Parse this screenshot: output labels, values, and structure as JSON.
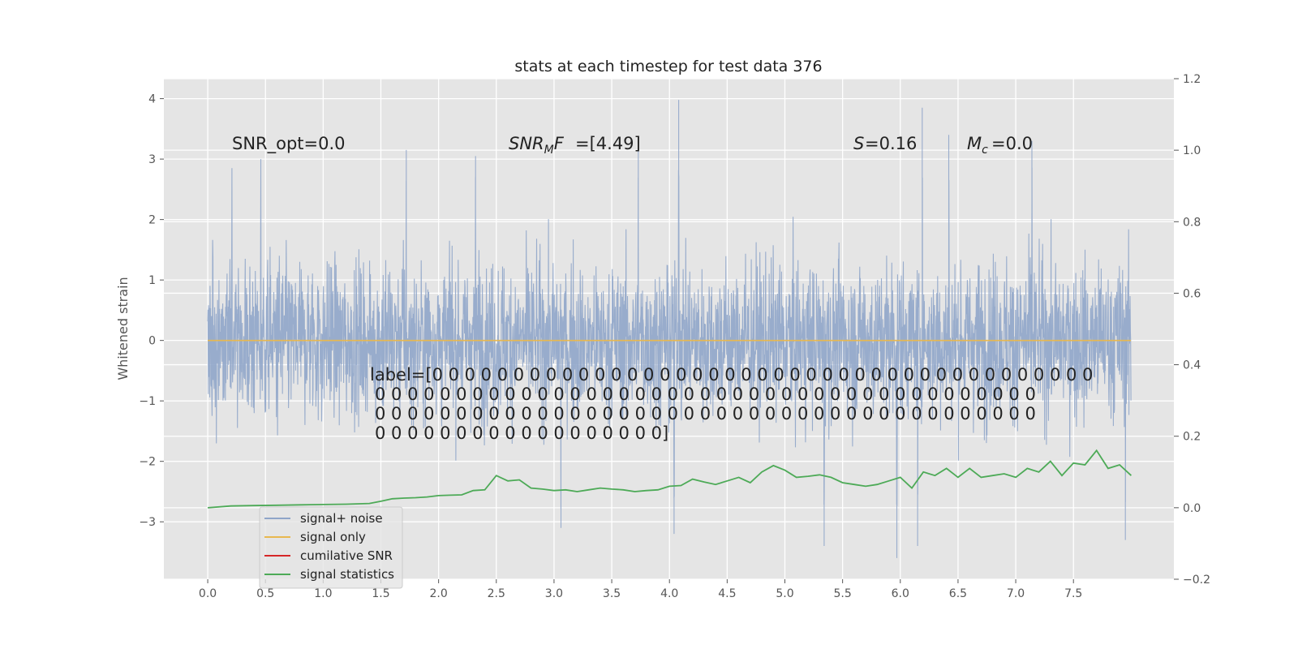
{
  "chart_data": {
    "type": "line",
    "title": "stats at each timestep for test data 376",
    "ylabel": "Whitened strain",
    "xlim": [
      -0.38,
      8.37
    ],
    "ylim": [
      -3.95,
      4.33
    ],
    "ylim_right": [
      -0.2,
      1.2
    ],
    "x_ticks": [
      0.0,
      0.5,
      1.0,
      1.5,
      2.0,
      2.5,
      3.0,
      3.5,
      4.0,
      4.5,
      5.0,
      5.5,
      6.0,
      6.5,
      7.0,
      7.5
    ],
    "x_tick_labels": [
      "0.0",
      "0.5",
      "1.0",
      "1.5",
      "2.0",
      "2.5",
      "3.0",
      "3.5",
      "4.0",
      "4.5",
      "5.0",
      "5.5",
      "6.0",
      "6.5",
      "7.0",
      "7.5"
    ],
    "y_ticks": [
      -3,
      -2,
      -1,
      0,
      1,
      2,
      3,
      4
    ],
    "y_tick_labels": [
      "−3",
      "−2",
      "−1",
      "0",
      "1",
      "2",
      "3",
      "4"
    ],
    "y_right_ticks": [
      -0.2,
      0.0,
      0.2,
      0.4,
      0.6,
      0.8,
      1.0,
      1.2
    ],
    "y_right_tick_labels": [
      "−0.2",
      "0.0",
      "0.2",
      "0.4",
      "0.6",
      "0.8",
      "1.0",
      "1.2"
    ],
    "grid": true,
    "legend_position": "lower-left",
    "series": [
      {
        "name": "signal+ noise",
        "color": "#8fa5c9",
        "x_range": [
          0.0,
          7.998
        ],
        "typical_range": [
          -1.5,
          1.5
        ],
        "peaks": [
          {
            "x": 0.21,
            "y": 2.85
          },
          {
            "x": 0.46,
            "y": 3.0
          },
          {
            "x": 1.72,
            "y": 3.15
          },
          {
            "x": 2.32,
            "y": 3.05
          },
          {
            "x": 3.73,
            "y": 3.3
          },
          {
            "x": 4.08,
            "y": 3.98
          },
          {
            "x": 6.19,
            "y": 3.85
          },
          {
            "x": 6.42,
            "y": 3.4
          },
          {
            "x": 7.14,
            "y": 3.3
          }
        ],
        "troughs": [
          {
            "x": 3.06,
            "y": -3.1
          },
          {
            "x": 4.04,
            "y": -3.2
          },
          {
            "x": 5.34,
            "y": -3.4
          },
          {
            "x": 5.97,
            "y": -3.6
          },
          {
            "x": 6.15,
            "y": -3.4
          },
          {
            "x": 7.95,
            "y": -3.3
          }
        ]
      },
      {
        "name": "signal only",
        "color": "#e8b84f",
        "x": [
          0.0,
          7.998
        ],
        "values": [
          0.0,
          0.0
        ]
      },
      {
        "name": "cumilative SNR",
        "color": "#d62728",
        "x": [],
        "values": []
      },
      {
        "name": "signal statistics",
        "color": "#4daa57",
        "axis": "right",
        "x": [
          0.0,
          0.2,
          0.4,
          0.6,
          0.8,
          1.0,
          1.2,
          1.4,
          1.5,
          1.6,
          1.7,
          1.8,
          1.9,
          2.0,
          2.1,
          2.2,
          2.3,
          2.4,
          2.5,
          2.6,
          2.7,
          2.8,
          2.9,
          3.0,
          3.1,
          3.2,
          3.3,
          3.4,
          3.5,
          3.6,
          3.7,
          3.8,
          3.9,
          4.0,
          4.1,
          4.2,
          4.3,
          4.4,
          4.5,
          4.6,
          4.7,
          4.8,
          4.9,
          5.0,
          5.1,
          5.2,
          5.3,
          5.4,
          5.5,
          5.6,
          5.7,
          5.8,
          5.9,
          6.0,
          6.1,
          6.2,
          6.3,
          6.4,
          6.5,
          6.6,
          6.7,
          6.8,
          6.9,
          7.0,
          7.1,
          7.2,
          7.3,
          7.4,
          7.5,
          7.6,
          7.7,
          7.8,
          7.9,
          8.0
        ],
        "values": [
          0.0,
          0.005,
          0.006,
          0.007,
          0.008,
          0.009,
          0.01,
          0.012,
          0.018,
          0.025,
          0.027,
          0.028,
          0.03,
          0.034,
          0.035,
          0.036,
          0.048,
          0.05,
          0.09,
          0.075,
          0.078,
          0.055,
          0.052,
          0.048,
          0.05,
          0.045,
          0.05,
          0.055,
          0.052,
          0.05,
          0.045,
          0.048,
          0.05,
          0.06,
          0.062,
          0.08,
          0.072,
          0.065,
          0.075,
          0.085,
          0.07,
          0.1,
          0.118,
          0.105,
          0.085,
          0.088,
          0.092,
          0.085,
          0.07,
          0.065,
          0.06,
          0.065,
          0.075,
          0.085,
          0.055,
          0.1,
          0.09,
          0.11,
          0.085,
          0.11,
          0.085,
          0.09,
          0.095,
          0.085,
          0.11,
          0.1,
          0.13,
          0.09,
          0.125,
          0.12,
          0.16,
          0.11,
          0.12,
          0.09
        ]
      }
    ],
    "annotations": {
      "snr_opt": "SNR_opt=0.0",
      "snr_mf": "=[4.49]",
      "s": "=0.16",
      "mc": "=0.0",
      "label_lines": [
        "label=[0 0 0 0 0 0 0 0 0 0 0 0 0 0 0 0 0 0 0 0 0 0 0 0 0 0 0 0 0 0 0 0 0 0 0 0 0 0 0 0 0",
        "0 0 0 0 0 0 0 0 0 0 0 0 0 0 0 0 0 0 0 0 0 0 0 0 0 0 0 0 0 0 0 0 0 0 0 0 0 0 0 0 0",
        "0 0 0 0 0 0 0 0 0 0 0 0 0 0 0 0 0 0 0 0 0 0 0 0 0 0 0 0 0 0 0 0 0 0 0 0 0 0 0 0 0",
        "0 0 0 0 0 0 0 0 0 0 0 0 0 0 0 0 0 0]"
      ]
    }
  }
}
